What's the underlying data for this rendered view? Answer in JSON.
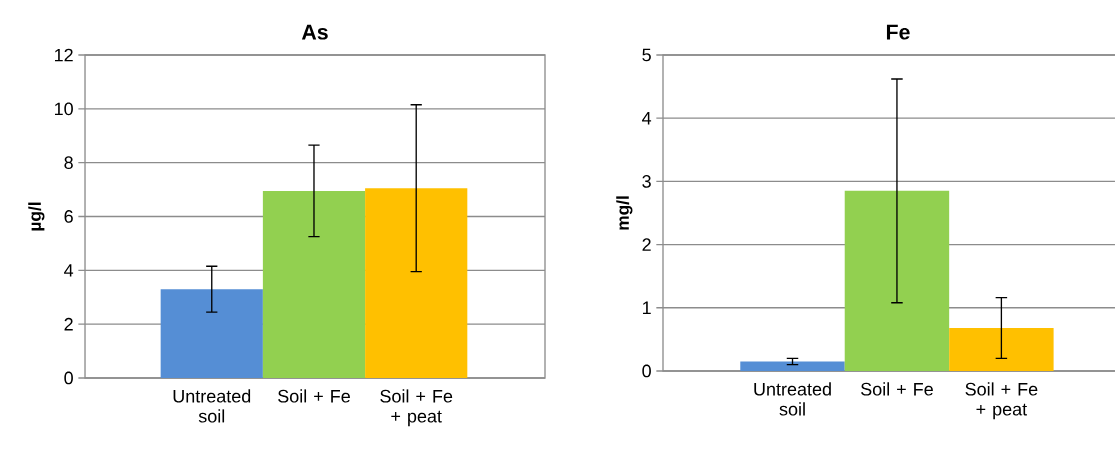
{
  "chart_data": [
    {
      "type": "bar",
      "title": "As",
      "ylabel": "µg/l",
      "categories": [
        "Untreated soil",
        "Soil + Fe",
        "Soil + Fe + peat"
      ],
      "values": [
        3.3,
        6.95,
        7.05
      ],
      "colors": [
        "#558ed5",
        "#92d050",
        "#ffc000"
      ],
      "errors": [
        0.85,
        1.7,
        3.1
      ],
      "ylim": [
        0,
        12
      ],
      "yticks": [
        0,
        2,
        4,
        6,
        8,
        10,
        12
      ],
      "grid": "y"
    },
    {
      "type": "bar",
      "title": "Fe",
      "ylabel": "mg/l",
      "categories": [
        "Untreated soil",
        "Soil + Fe",
        "Soil + Fe + peat"
      ],
      "values": [
        0.15,
        2.85,
        0.68
      ],
      "colors": [
        "#558ed5",
        "#92d050",
        "#ffc000"
      ],
      "errors": [
        0.05,
        1.77,
        0.48
      ],
      "ylim": [
        0,
        5
      ],
      "yticks": [
        0,
        1,
        2,
        3,
        4,
        5
      ],
      "grid": "y"
    }
  ]
}
